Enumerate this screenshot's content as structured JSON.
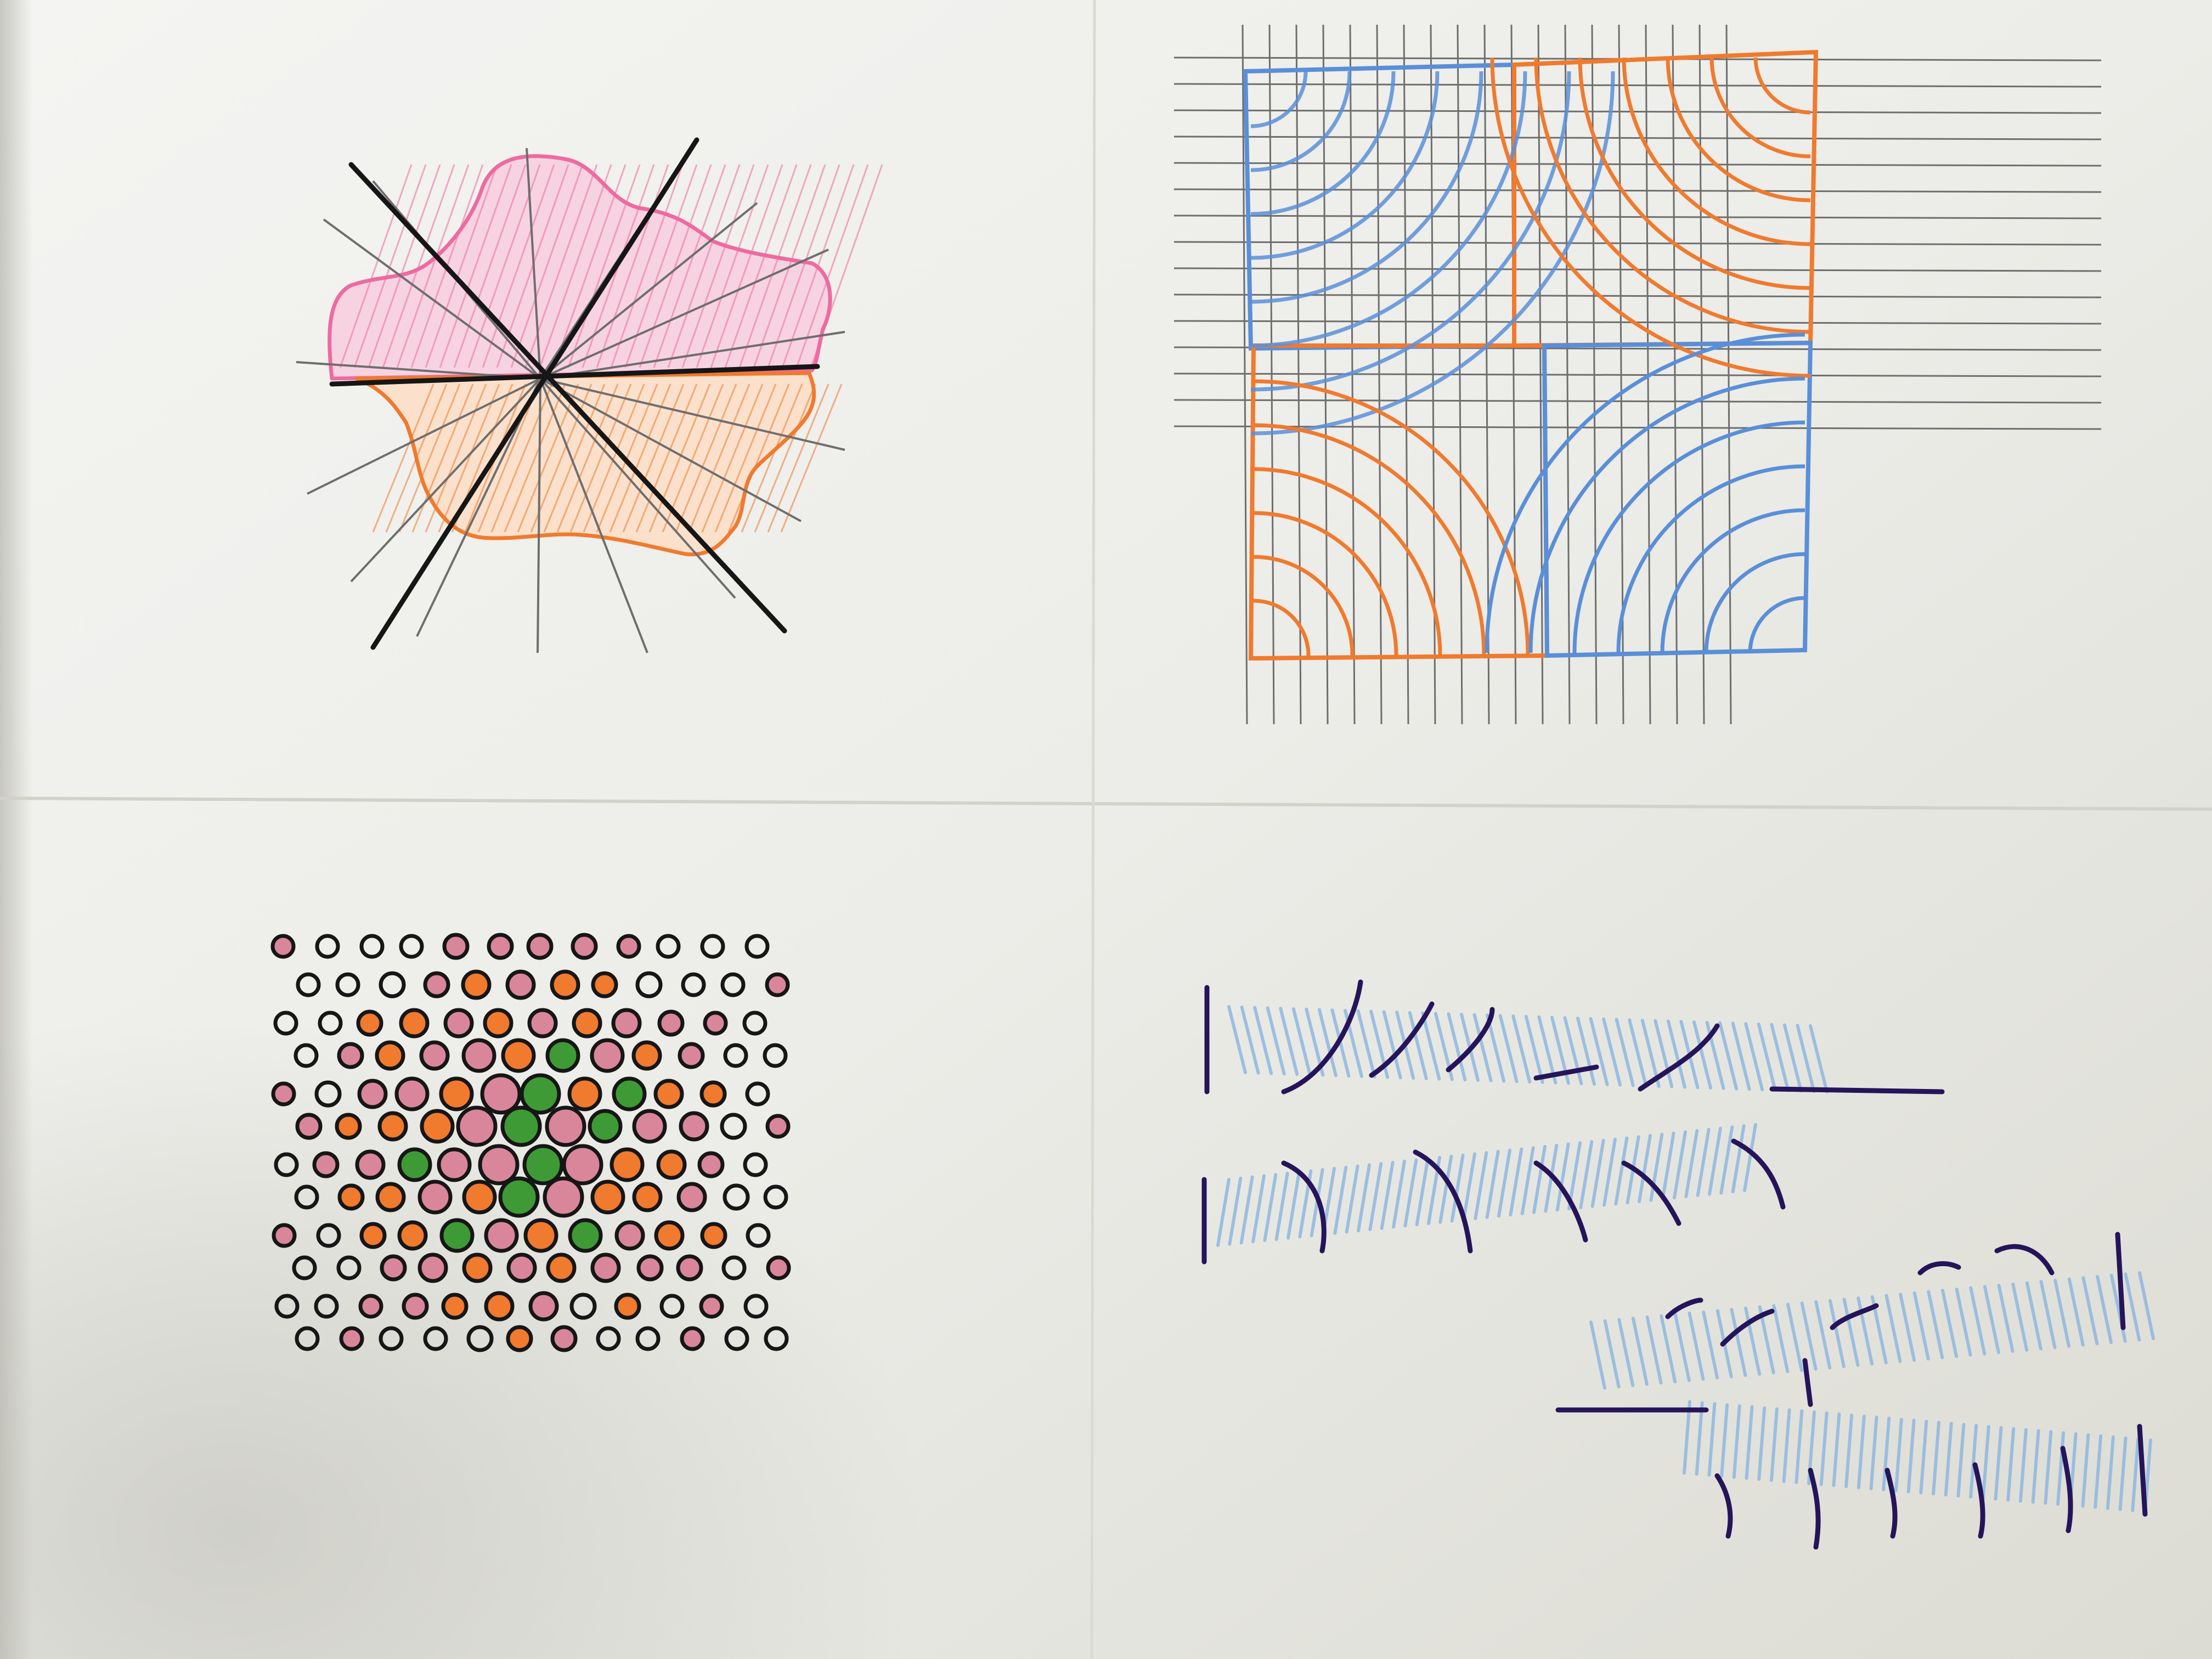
{
  "photo": {
    "subject": "hand-drawn-symmetry-patterns-on-folded-paper",
    "colors": {
      "paper_light": "#f3f3f1",
      "paper_mid": "#e6e6e0",
      "paper_shadow": "#c9c9c1",
      "ink_black": "#161616",
      "pencil_gray": "#6e6e6e",
      "pink": "#ee6aa0",
      "orange": "#f07a2e",
      "blue": "#5a8fd8",
      "light_blue": "#8fb8e0",
      "green": "#3e9a35",
      "dot_pink": "#d9869a",
      "navy_ink": "#26145a"
    },
    "panels": [
      {
        "id": "star-panel",
        "description_icon": "radial-star-icon"
      },
      {
        "id": "grid-panel",
        "description_icon": "quarter-arc-grid-icon"
      },
      {
        "id": "dots-panel",
        "description_icon": "colored-dots-icon"
      },
      {
        "id": "strokes-panel",
        "description_icon": "stroke-rows-icon"
      }
    ]
  }
}
